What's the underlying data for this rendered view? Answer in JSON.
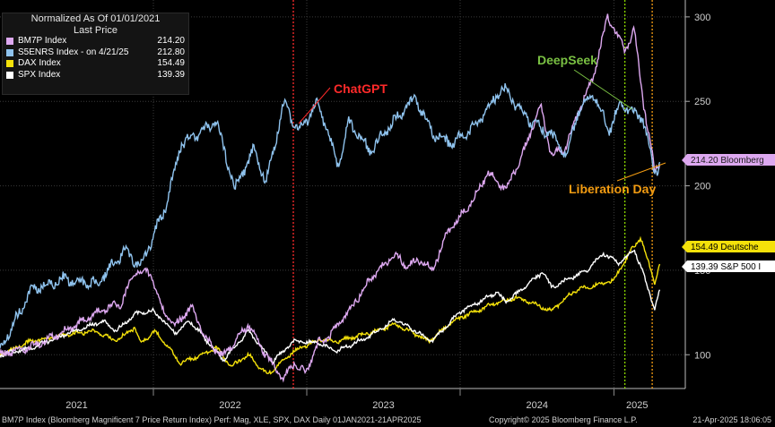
{
  "legend": {
    "title": "Normalized As Of 01/01/2021",
    "subtitle": "Last Price",
    "items": [
      {
        "label": "BM7P Index",
        "value": "214.20",
        "color": "#dda8f0"
      },
      {
        "label": "S5ENRS Index -  on 4/21/25",
        "value": "212.80",
        "color": "#8fc3ee"
      },
      {
        "label": "DAX Index",
        "value": "154.49",
        "color": "#f4e10a"
      },
      {
        "label": "SPX Index",
        "value": "139.39",
        "color": "#ffffff"
      }
    ]
  },
  "footer": {
    "description": "BM7P Index (Bloomberg Magnificent 7 Price Return Index) Perf: Mag, XLE, SPX, DAX  Daily 01JAN2021-21APR2025",
    "copyright": "Copyright© 2025 Bloomberg Finance L.P.",
    "timestamp": "21-Apr-2025 18:06:05"
  },
  "chart_data": {
    "type": "line",
    "x_range": [
      "2021-01-01",
      "2025-04-21"
    ],
    "ylim": [
      80,
      310
    ],
    "y_ticks": [
      100,
      150,
      200,
      250,
      300
    ],
    "x_ticks": [
      "2021",
      "2022",
      "2023",
      "2024",
      "2025"
    ],
    "grid": true,
    "legend_position": "top-left",
    "series": [
      {
        "name": "BM7P Index",
        "color": "#dda8f0",
        "last_label": "214.20 Bloomberg",
        "points": [
          [
            "2021-01-01",
            100
          ],
          [
            "2021-02-15",
            103
          ],
          [
            "2021-04-01",
            106
          ],
          [
            "2021-06-01",
            114
          ],
          [
            "2021-08-01",
            122
          ],
          [
            "2021-09-15",
            128
          ],
          [
            "2021-10-15",
            130
          ],
          [
            "2021-11-20",
            150
          ],
          [
            "2021-12-27",
            148
          ],
          [
            "2022-01-20",
            128
          ],
          [
            "2022-02-20",
            117
          ],
          [
            "2022-04-01",
            128
          ],
          [
            "2022-05-10",
            108
          ],
          [
            "2022-06-15",
            99
          ],
          [
            "2022-08-15",
            118
          ],
          [
            "2022-09-20",
            102
          ],
          [
            "2022-10-15",
            93
          ],
          [
            "2022-11-05",
            86
          ],
          [
            "2022-12-01",
            95
          ],
          [
            "2022-12-28",
            89
          ],
          [
            "2023-01-31",
            108
          ],
          [
            "2023-02-20",
            110
          ],
          [
            "2023-03-31",
            122
          ],
          [
            "2023-05-31",
            144
          ],
          [
            "2023-07-31",
            160
          ],
          [
            "2023-08-20",
            153
          ],
          [
            "2023-09-30",
            156
          ],
          [
            "2023-10-27",
            150
          ],
          [
            "2023-11-30",
            172
          ],
          [
            "2023-12-28",
            180
          ],
          [
            "2024-02-01",
            192
          ],
          [
            "2024-03-08",
            208
          ],
          [
            "2024-04-19",
            198
          ],
          [
            "2024-05-31",
            220
          ],
          [
            "2024-07-10",
            248
          ],
          [
            "2024-08-05",
            218
          ],
          [
            "2024-09-06",
            222
          ],
          [
            "2024-10-15",
            248
          ],
          [
            "2024-11-10",
            262
          ],
          [
            "2024-12-17",
            300
          ],
          [
            "2025-01-07",
            290
          ],
          [
            "2025-01-27",
            280
          ],
          [
            "2025-02-18",
            292
          ],
          [
            "2025-03-13",
            248
          ],
          [
            "2025-04-08",
            209
          ],
          [
            "2025-04-21",
            214
          ]
        ]
      },
      {
        "name": "S5ENRS Index",
        "color": "#8fc3ee",
        "last_label": "212.80",
        "points": [
          [
            "2021-01-01",
            103
          ],
          [
            "2021-03-15",
            138
          ],
          [
            "2021-06-01",
            145
          ],
          [
            "2021-08-20",
            142
          ],
          [
            "2021-10-25",
            162
          ],
          [
            "2021-11-30",
            152
          ],
          [
            "2022-01-31",
            188
          ],
          [
            "2022-03-08",
            225
          ],
          [
            "2022-04-15",
            230
          ],
          [
            "2022-05-31",
            238
          ],
          [
            "2022-07-14",
            198
          ],
          [
            "2022-08-29",
            222
          ],
          [
            "2022-09-26",
            202
          ],
          [
            "2022-11-08",
            249
          ],
          [
            "2022-12-15",
            232
          ],
          [
            "2023-01-27",
            250
          ],
          [
            "2023-03-17",
            212
          ],
          [
            "2023-04-12",
            238
          ],
          [
            "2023-06-01",
            220
          ],
          [
            "2023-07-15",
            235
          ],
          [
            "2023-09-15",
            252
          ],
          [
            "2023-10-31",
            230
          ],
          [
            "2023-12-15",
            225
          ],
          [
            "2024-02-15",
            238
          ],
          [
            "2024-04-12",
            258
          ],
          [
            "2024-06-15",
            238
          ],
          [
            "2024-08-05",
            230
          ],
          [
            "2024-09-10",
            218
          ],
          [
            "2024-10-07",
            244
          ],
          [
            "2024-11-15",
            255
          ],
          [
            "2024-12-20",
            232
          ],
          [
            "2025-01-17",
            250
          ],
          [
            "2025-02-20",
            242
          ],
          [
            "2025-03-10",
            240
          ],
          [
            "2025-04-08",
            208
          ],
          [
            "2025-04-21",
            213
          ]
        ]
      },
      {
        "name": "DAX Index",
        "color": "#f4e10a",
        "last_label": "154.49 Deutsche",
        "points": [
          [
            "2021-01-01",
            100
          ],
          [
            "2021-03-15",
            108
          ],
          [
            "2021-06-15",
            112
          ],
          [
            "2021-08-15",
            114
          ],
          [
            "2021-10-04",
            108
          ],
          [
            "2021-11-17",
            116
          ],
          [
            "2021-12-01",
            107
          ],
          [
            "2022-01-05",
            114
          ],
          [
            "2022-03-08",
            95
          ],
          [
            "2022-05-31",
            104
          ],
          [
            "2022-07-05",
            93
          ],
          [
            "2022-08-15",
            100
          ],
          [
            "2022-09-29",
            88
          ],
          [
            "2022-11-30",
            102
          ],
          [
            "2023-01-31",
            109
          ],
          [
            "2023-03-15",
            108
          ],
          [
            "2023-06-15",
            114
          ],
          [
            "2023-07-31",
            118
          ],
          [
            "2023-10-20",
            108
          ],
          [
            "2023-12-14",
            120
          ],
          [
            "2024-03-28",
            131
          ],
          [
            "2024-05-15",
            134
          ],
          [
            "2024-08-05",
            126
          ],
          [
            "2024-09-30",
            138
          ],
          [
            "2024-12-31",
            144
          ],
          [
            "2025-02-14",
            163
          ],
          [
            "2025-03-06",
            169
          ],
          [
            "2025-04-08",
            143
          ],
          [
            "2025-04-21",
            154
          ]
        ]
      },
      {
        "name": "SPX Index",
        "color": "#ffffff",
        "last_label": "139.39 S&P 500 I",
        "points": [
          [
            "2021-01-01",
            100
          ],
          [
            "2021-03-15",
            104
          ],
          [
            "2021-06-15",
            113
          ],
          [
            "2021-09-02",
            120
          ],
          [
            "2021-10-04",
            114
          ],
          [
            "2021-11-18",
            124
          ],
          [
            "2021-12-31",
            126
          ],
          [
            "2022-02-23",
            113
          ],
          [
            "2022-03-29",
            120
          ],
          [
            "2022-06-16",
            97
          ],
          [
            "2022-08-16",
            114
          ],
          [
            "2022-10-12",
            96
          ],
          [
            "2022-12-01",
            108
          ],
          [
            "2023-01-31",
            107
          ],
          [
            "2023-03-13",
            102
          ],
          [
            "2023-05-31",
            111
          ],
          [
            "2023-07-31",
            121
          ],
          [
            "2023-10-27",
            108
          ],
          [
            "2023-12-29",
            125
          ],
          [
            "2024-03-28",
            137
          ],
          [
            "2024-04-19",
            131
          ],
          [
            "2024-07-16",
            149
          ],
          [
            "2024-08-05",
            140
          ],
          [
            "2024-10-31",
            150
          ],
          [
            "2024-12-06",
            160
          ],
          [
            "2025-01-13",
            154
          ],
          [
            "2025-02-19",
            162
          ],
          [
            "2025-03-13",
            147
          ],
          [
            "2025-04-08",
            127
          ],
          [
            "2025-04-21",
            139
          ]
        ]
      }
    ],
    "vlines": [
      {
        "date": "2022-11-30",
        "color": "#ff2a2a"
      },
      {
        "date": "2025-01-27",
        "color": "#8bd600"
      },
      {
        "date": "2025-04-02",
        "color": "#f39c12"
      }
    ],
    "annotations": [
      {
        "text": "ChatGPT",
        "color": "#ff2a2a"
      },
      {
        "text": "DeepSeek",
        "color": "#7ac143"
      },
      {
        "text": "Liberation Day",
        "color": "#f39c12"
      }
    ]
  }
}
